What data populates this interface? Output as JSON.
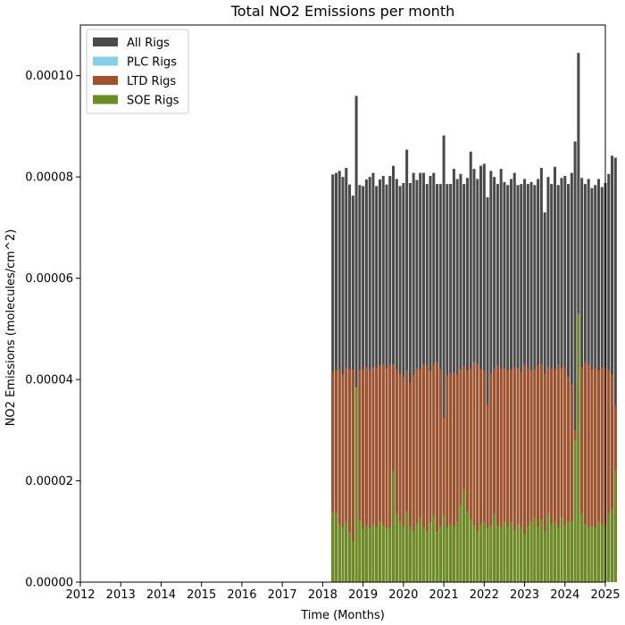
{
  "chart_data": {
    "type": "bar",
    "title": "Total NO2 Emissions per month",
    "xlabel": "Time (Months)",
    "ylabel": "NO2 Emissions (molecules/cm^2)",
    "xlim": [
      2012,
      2025
    ],
    "ylim": [
      0,
      0.00011
    ],
    "x_ticks": [
      "2012",
      "2013",
      "2014",
      "2015",
      "2016",
      "2017",
      "2018",
      "2019",
      "2020",
      "2021",
      "2022",
      "2023",
      "2024",
      "2025"
    ],
    "y_ticks": [
      "0.00000",
      "0.00002",
      "0.00004",
      "0.00006",
      "0.00008",
      "0.00010"
    ],
    "y_tick_values": [
      0,
      2e-05,
      4e-05,
      6e-05,
      8e-05,
      0.0001
    ],
    "legend_position": "upper-left",
    "x_start": "2018-04",
    "x_step": "1 month",
    "series": [
      {
        "name": "All Rigs",
        "color": "#4a4a4a",
        "values": [
          8.05e-05,
          8.08e-05,
          8.12e-05,
          8e-05,
          8.18e-05,
          7.85e-05,
          7.63e-05,
          9.6e-05,
          7.84e-05,
          7.82e-05,
          7.95e-05,
          8e-05,
          8.08e-05,
          7.82e-05,
          7.95e-05,
          8.02e-05,
          7.85e-05,
          8.02e-05,
          8.22e-05,
          7.96e-05,
          7.82e-05,
          7.88e-05,
          8.54e-05,
          7.88e-05,
          8.08e-05,
          7.94e-05,
          8.08e-05,
          8.08e-05,
          7.86e-05,
          8.02e-05,
          8.08e-05,
          7.86e-05,
          7.86e-05,
          8.82e-05,
          7.86e-05,
          7.86e-05,
          8.16e-05,
          7.96e-05,
          8.06e-05,
          7.86e-05,
          7.98e-05,
          8.5e-05,
          8.16e-05,
          7.96e-05,
          8.22e-05,
          8.26e-05,
          7.6e-05,
          8.12e-05,
          8e-05,
          7.86e-05,
          8.16e-05,
          7.9e-05,
          7.84e-05,
          7.96e-05,
          8.08e-05,
          7.84e-05,
          7.86e-05,
          7.96e-05,
          7.86e-05,
          7.9e-05,
          7.84e-05,
          7.96e-05,
          8.18e-05,
          7.3e-05,
          8e-05,
          7.86e-05,
          8.2e-05,
          7.84e-05,
          7.98e-05,
          8.02e-05,
          7.86e-05,
          8.08e-05,
          8.7e-05,
          0.0001045,
          7.98e-05,
          7.86e-05,
          7.96e-05,
          7.78e-05,
          7.84e-05,
          7.96e-05,
          7.8e-05,
          7.88e-05,
          8.06e-05,
          8.42e-05,
          8.38e-05
        ]
      },
      {
        "name": "PLC Rigs",
        "color": "#87ceeb",
        "values": [
          2e-06,
          2e-06,
          2e-06,
          2e-06,
          2e-06,
          2e-06,
          2e-06,
          2e-06,
          2e-06,
          2e-06,
          2e-06,
          2e-06,
          2e-06,
          2e-06,
          2e-06,
          2e-06,
          2e-06,
          2e-06,
          2e-06,
          2e-06,
          2e-06,
          2e-06,
          2e-06,
          2e-06,
          2e-06,
          2e-06,
          2e-06,
          2e-06,
          2e-06,
          2e-06,
          2e-06,
          2e-06,
          2e-06,
          2e-06,
          2e-06,
          2e-06,
          2e-06,
          2e-06,
          2e-06,
          2e-06,
          2e-06,
          2e-06,
          2e-06,
          2e-06,
          2e-06,
          2e-06,
          2e-06,
          2e-06,
          2e-06,
          2e-06,
          2e-06,
          2e-06,
          2e-06,
          2e-06,
          2e-06,
          2e-06,
          2e-06,
          2e-06,
          2e-06,
          2e-06,
          2e-06,
          2e-06,
          2e-06,
          2e-06,
          2e-06,
          2e-06,
          2e-06,
          2e-06,
          2e-06,
          2e-06,
          2e-06,
          2e-06,
          2e-06,
          2e-06,
          2e-06,
          2e-06,
          2e-06,
          2e-06,
          2e-06,
          2e-06,
          2e-06,
          2e-06,
          2e-06,
          2e-06,
          2e-06
        ]
      },
      {
        "name": "LTD Rigs",
        "color": "#a0522d",
        "values": [
          4.15e-05,
          4.18e-05,
          4.2e-05,
          4.1e-05,
          4.25e-05,
          4.2e-05,
          4.2e-05,
          3.85e-05,
          4.18e-05,
          4.2e-05,
          4.25e-05,
          4.2e-05,
          4.25e-05,
          4.22e-05,
          4.28e-05,
          4.3e-05,
          4.22e-05,
          4.3e-05,
          4.3e-05,
          4.2e-05,
          4.12e-05,
          4.05e-05,
          4.18e-05,
          3.95e-05,
          4.1e-05,
          4.22e-05,
          4.2e-05,
          4.3e-05,
          4.28e-05,
          4.18e-05,
          4.3e-05,
          4.35e-05,
          4.2e-05,
          3.25e-05,
          4.08e-05,
          4.12e-05,
          4.15e-05,
          4.1e-05,
          4.2e-05,
          4.28e-05,
          4.18e-05,
          4.22e-05,
          4.35e-05,
          4.3e-05,
          4.2e-05,
          4.18e-05,
          3.5e-05,
          4.12e-05,
          4.22e-05,
          4.28e-05,
          4.2e-05,
          4.22e-05,
          4.18e-05,
          4.2e-05,
          4.25e-05,
          4.22e-05,
          4.15e-05,
          4.3e-05,
          4.25e-05,
          4.18e-05,
          4.2e-05,
          4.28e-05,
          4.3e-05,
          4.12e-05,
          4.25e-05,
          4.22e-05,
          4.2e-05,
          4.3e-05,
          4.22e-05,
          4.25e-05,
          4.05e-05,
          3.9e-05,
          3e-05,
          3.9e-05,
          4.25e-05,
          4.35e-05,
          4.3e-05,
          4.2e-05,
          4.22e-05,
          4.18e-05,
          4.25e-05,
          4.22e-05,
          4.2e-05,
          4.1e-05,
          3.5e-05
        ]
      },
      {
        "name": "SOE Rigs",
        "color": "#6b8e23",
        "values": [
          1.38e-05,
          1.35e-05,
          1.15e-05,
          1.08e-05,
          1.2e-05,
          1e-05,
          8e-06,
          3.85e-05,
          1.22e-05,
          1.05e-05,
          1.12e-05,
          1.08e-05,
          1.15e-05,
          1.08e-05,
          1.2e-05,
          1.12e-05,
          1.05e-05,
          1.08e-05,
          2.2e-05,
          1.35e-05,
          1.2e-05,
          1.1e-05,
          1.4e-05,
          1.1e-05,
          1e-05,
          1.15e-05,
          1.28e-05,
          1.08e-05,
          1e-05,
          1.18e-05,
          1.32e-05,
          1e-05,
          1.1e-05,
          1.32e-05,
          1.08e-05,
          1.15e-05,
          1.1e-05,
          1.2e-05,
          1.52e-05,
          1.82e-05,
          1.4e-05,
          1.25e-05,
          1.12e-05,
          1e-05,
          1.15e-05,
          1.2e-05,
          1.08e-05,
          1.12e-05,
          1.35e-05,
          1.12e-05,
          1.08e-05,
          1.2e-05,
          1.1e-05,
          1.18e-05,
          1.02e-05,
          1.15e-05,
          1.08e-05,
          9.5e-06,
          1.12e-05,
          1.2e-05,
          1.28e-05,
          1.1e-05,
          1.25e-05,
          1e-05,
          1.35e-05,
          1.15e-05,
          1.2e-05,
          1.08e-05,
          1.3e-05,
          1.12e-05,
          1.2e-05,
          1.2e-05,
          2.8e-05,
          5.3e-05,
          1.35e-05,
          1.15e-05,
          1.08e-05,
          1.1e-05,
          1.08e-05,
          1.2e-05,
          1.15e-05,
          1.1e-05,
          1.35e-05,
          1.45e-05,
          2.2e-05
        ]
      }
    ]
  }
}
